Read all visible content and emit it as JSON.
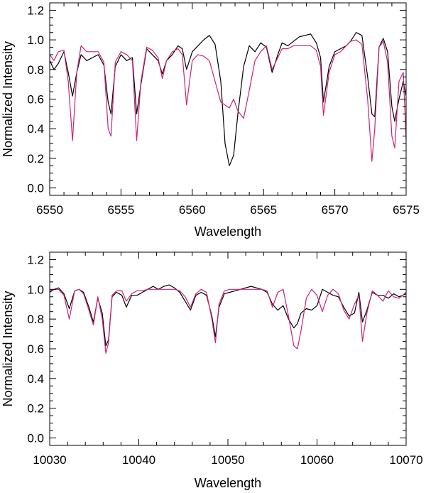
{
  "chart_data": [
    {
      "type": "line",
      "xlabel": "Wavelength",
      "ylabel": "Normalized Intensity",
      "xlim": [
        6550,
        6575
      ],
      "ylim": [
        -0.05,
        1.25
      ],
      "xticks": [
        6550,
        6555,
        6560,
        6565,
        6570,
        6575
      ],
      "yticks": [
        0.0,
        0.2,
        0.4,
        0.6,
        0.8,
        1.0,
        1.2
      ],
      "ytick_labels": [
        "0.0",
        "0.2",
        "0.4",
        "0.6",
        "0.8",
        "1.0",
        "1.2"
      ],
      "grid": false,
      "series": [
        {
          "color": "#000000",
          "x": [
            6550.0,
            6550.3,
            6550.6,
            6551.0,
            6551.3,
            6551.6,
            6551.9,
            6552.2,
            6552.6,
            6553.0,
            6553.4,
            6553.8,
            6554.1,
            6554.3,
            6554.6,
            6555.0,
            6555.4,
            6555.8,
            6556.1,
            6556.4,
            6556.8,
            6557.2,
            6557.6,
            6557.9,
            6558.2,
            6558.6,
            6559.0,
            6559.3,
            6559.6,
            6560.0,
            6560.4,
            6560.8,
            6561.2,
            6561.6,
            6562.0,
            6562.3,
            6562.6,
            6562.9,
            6563.2,
            6563.6,
            6564.0,
            6564.4,
            6564.8,
            6565.2,
            6565.6,
            6566.0,
            6566.3,
            6566.7,
            6567.1,
            6567.5,
            6567.9,
            6568.3,
            6568.7,
            6569.0,
            6569.2,
            6569.6,
            6570.0,
            6570.4,
            6570.8,
            6571.1,
            6571.5,
            6571.9,
            6572.3,
            6572.6,
            6572.8,
            6573.1,
            6573.4,
            6573.7,
            6574.0,
            6574.2,
            6574.5,
            6574.8,
            6575.0
          ],
          "y": [
            0.86,
            0.8,
            0.84,
            0.92,
            0.78,
            0.62,
            0.78,
            0.9,
            0.86,
            0.88,
            0.9,
            0.83,
            0.58,
            0.5,
            0.82,
            0.9,
            0.86,
            0.88,
            0.5,
            0.7,
            0.94,
            0.9,
            0.86,
            0.77,
            0.86,
            0.9,
            0.96,
            0.94,
            0.8,
            0.92,
            0.96,
            1.0,
            1.03,
            0.97,
            0.72,
            0.3,
            0.15,
            0.22,
            0.5,
            0.82,
            0.96,
            0.92,
            0.98,
            0.95,
            0.78,
            0.9,
            0.98,
            0.96,
            0.99,
            1.02,
            1.03,
            1.04,
            0.98,
            0.88,
            0.58,
            0.82,
            0.92,
            0.94,
            0.96,
            0.99,
            1.05,
            1.03,
            0.75,
            0.5,
            0.48,
            0.95,
            1.01,
            0.92,
            0.55,
            0.45,
            0.6,
            0.72,
            0.62
          ]
        },
        {
          "color": "#cc2277",
          "x": [
            6550.0,
            6550.3,
            6550.6,
            6551.0,
            6551.3,
            6551.6,
            6551.9,
            6552.2,
            6552.6,
            6553.0,
            6553.4,
            6553.8,
            6554.1,
            6554.3,
            6554.6,
            6555.0,
            6555.4,
            6555.8,
            6556.1,
            6556.4,
            6556.8,
            6557.2,
            6557.6,
            6557.9,
            6558.2,
            6558.6,
            6559.0,
            6559.3,
            6559.6,
            6560.0,
            6560.4,
            6560.8,
            6561.2,
            6561.6,
            6562.0,
            6562.3,
            6562.6,
            6562.9,
            6563.2,
            6563.6,
            6564.0,
            6564.4,
            6564.8,
            6565.2,
            6565.6,
            6566.0,
            6566.3,
            6566.7,
            6567.1,
            6567.5,
            6567.9,
            6568.3,
            6568.7,
            6569.0,
            6569.2,
            6569.6,
            6570.0,
            6570.4,
            6570.8,
            6571.1,
            6571.5,
            6571.9,
            6572.3,
            6572.6,
            6572.8,
            6573.1,
            6573.4,
            6573.7,
            6574.0,
            6574.2,
            6574.5,
            6574.8,
            6575.0
          ],
          "y": [
            0.9,
            0.86,
            0.92,
            0.93,
            0.72,
            0.32,
            0.78,
            0.96,
            0.92,
            0.92,
            0.92,
            0.85,
            0.4,
            0.35,
            0.85,
            0.92,
            0.9,
            0.86,
            0.32,
            0.72,
            0.95,
            0.93,
            0.88,
            0.74,
            0.86,
            0.92,
            0.94,
            0.9,
            0.56,
            0.86,
            0.9,
            0.89,
            0.86,
            0.72,
            0.58,
            0.56,
            0.54,
            0.6,
            0.52,
            0.47,
            0.66,
            0.86,
            0.92,
            0.96,
            0.8,
            0.88,
            0.94,
            0.94,
            0.96,
            0.96,
            0.96,
            0.96,
            0.93,
            0.82,
            0.49,
            0.78,
            0.9,
            0.92,
            0.96,
            0.99,
            1.0,
            0.97,
            0.6,
            0.18,
            0.4,
            0.95,
            0.99,
            0.85,
            0.35,
            0.27,
            0.72,
            0.78,
            0.32
          ]
        }
      ]
    },
    {
      "type": "line",
      "xlabel": "Wavelength",
      "ylabel": "Normalized Intensity",
      "xlim": [
        10030,
        10070
      ],
      "ylim": [
        -0.05,
        1.25
      ],
      "xticks": [
        10030,
        10040,
        10050,
        10060,
        10070
      ],
      "yticks": [
        0.0,
        0.2,
        0.4,
        0.6,
        0.8,
        1.0,
        1.2
      ],
      "ytick_labels": [
        "0.0",
        "0.2",
        "0.4",
        "0.6",
        "0.8",
        "1.0",
        "1.2"
      ],
      "grid": false,
      "series": [
        {
          "color": "#000000",
          "x": [
            10030.0,
            10030.5,
            10031.0,
            10031.6,
            10032.2,
            10032.8,
            10033.3,
            10033.8,
            10034.4,
            10034.9,
            10035.4,
            10035.9,
            10036.3,
            10036.6,
            10037.0,
            10037.5,
            10038.1,
            10038.6,
            10039.2,
            10039.8,
            10040.4,
            10041.0,
            10041.6,
            10042.2,
            10042.8,
            10043.4,
            10044.0,
            10044.6,
            10045.2,
            10045.8,
            10046.4,
            10047.0,
            10047.6,
            10048.2,
            10048.6,
            10049.0,
            10049.6,
            10050.2,
            10050.8,
            10051.4,
            10052.0,
            10052.6,
            10053.2,
            10053.8,
            10054.4,
            10055.0,
            10055.6,
            10056.2,
            10056.8,
            10057.4,
            10057.8,
            10058.2,
            10058.8,
            10059.4,
            10060.0,
            10060.6,
            10061.2,
            10061.8,
            10062.4,
            10063.0,
            10063.6,
            10064.2,
            10064.7,
            10065.1,
            10065.6,
            10066.2,
            10066.8,
            10067.4,
            10068.0,
            10068.6,
            10069.2,
            10070.0
          ],
          "y": [
            0.98,
            1.0,
            1.01,
            0.97,
            0.87,
            0.99,
            1.0,
            0.98,
            0.88,
            0.78,
            0.94,
            0.84,
            0.62,
            0.66,
            0.95,
            0.98,
            0.96,
            0.88,
            0.96,
            0.96,
            0.98,
            1.0,
            1.02,
            1.0,
            1.02,
            1.03,
            1.01,
            0.98,
            0.92,
            0.86,
            0.96,
            0.98,
            0.96,
            0.82,
            0.68,
            0.88,
            0.97,
            0.98,
            0.99,
            1.0,
            1.01,
            1.02,
            1.01,
            1.0,
            0.98,
            0.9,
            0.86,
            0.89,
            0.8,
            0.74,
            0.77,
            0.84,
            0.87,
            0.86,
            0.89,
            1.0,
            0.98,
            0.96,
            0.95,
            0.88,
            0.82,
            0.84,
            0.98,
            0.78,
            0.86,
            0.98,
            0.96,
            0.96,
            0.94,
            0.97,
            0.95,
            0.97
          ]
        },
        {
          "color": "#cc2277",
          "x": [
            10030.0,
            10030.5,
            10031.0,
            10031.6,
            10032.2,
            10032.8,
            10033.3,
            10033.8,
            10034.4,
            10034.9,
            10035.4,
            10035.9,
            10036.3,
            10036.6,
            10037.0,
            10037.5,
            10038.1,
            10038.6,
            10039.2,
            10039.8,
            10040.4,
            10041.0,
            10041.6,
            10042.2,
            10042.8,
            10043.4,
            10044.0,
            10044.6,
            10045.2,
            10045.8,
            10046.4,
            10047.0,
            10047.6,
            10048.2,
            10048.6,
            10049.0,
            10049.6,
            10050.2,
            10050.8,
            10051.4,
            10052.0,
            10052.6,
            10053.2,
            10053.8,
            10054.4,
            10055.0,
            10055.6,
            10056.2,
            10056.8,
            10057.4,
            10057.8,
            10058.2,
            10058.8,
            10059.4,
            10060.0,
            10060.6,
            10061.2,
            10061.8,
            10062.4,
            10063.0,
            10063.6,
            10064.2,
            10064.7,
            10065.1,
            10065.6,
            10066.2,
            10066.8,
            10067.4,
            10068.0,
            10068.6,
            10069.2,
            10070.0
          ],
          "y": [
            0.99,
            1.0,
            1.0,
            0.96,
            0.8,
            0.99,
            1.0,
            0.97,
            0.86,
            0.76,
            0.95,
            0.8,
            0.57,
            0.64,
            0.96,
            0.99,
            0.99,
            0.92,
            0.97,
            0.99,
            0.99,
            1.0,
            1.0,
            1.0,
            1.0,
            1.0,
            1.0,
            0.99,
            0.95,
            0.88,
            0.97,
            1.0,
            0.98,
            0.8,
            0.64,
            0.9,
            0.99,
            1.0,
            1.0,
            1.0,
            1.0,
            1.0,
            1.0,
            1.0,
            0.99,
            0.88,
            0.98,
            1.0,
            0.82,
            0.62,
            0.6,
            0.72,
            0.94,
            1.0,
            0.96,
            0.85,
            0.96,
            1.0,
            0.97,
            0.86,
            0.8,
            0.9,
            0.96,
            0.65,
            0.84,
            0.99,
            0.96,
            0.92,
            0.99,
            0.95,
            0.94,
            0.98
          ]
        }
      ]
    }
  ]
}
